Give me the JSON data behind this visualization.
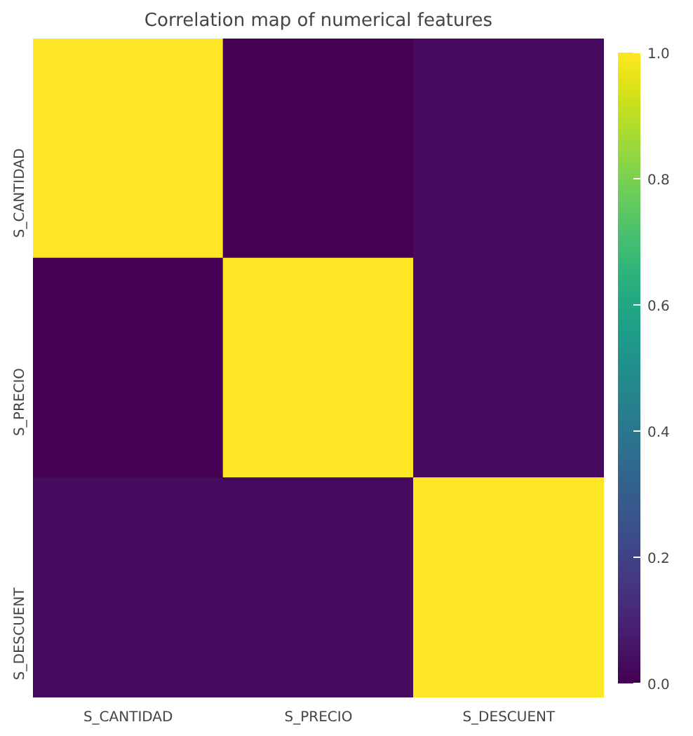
{
  "chart_data": {
    "type": "heatmap",
    "title": "Correlation map of numerical features",
    "categories": [
      "S_CANTIDAD",
      "S_PRECIO",
      "S_DESCUENT"
    ],
    "y_categories": [
      "S_CANTIDAD",
      "S_PRECIO",
      "S_DESCUENT"
    ],
    "cells": [
      [
        1.0,
        0.0,
        0.03
      ],
      [
        0.0,
        1.0,
        0.03
      ],
      [
        0.03,
        0.03,
        1.0
      ]
    ],
    "clim": [
      0.0,
      1.0
    ],
    "cticks": [
      {
        "value": 0.0,
        "label": "0.0"
      },
      {
        "value": 0.2,
        "label": "0.2"
      },
      {
        "value": 0.4,
        "label": "0.4"
      },
      {
        "value": 0.6,
        "label": "0.6"
      },
      {
        "value": 0.8,
        "label": "0.8"
      },
      {
        "value": 1.0,
        "label": "1.0"
      }
    ]
  }
}
